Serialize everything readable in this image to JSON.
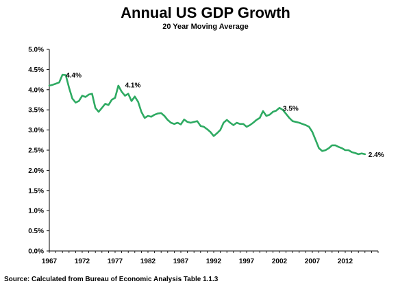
{
  "chart_data": {
    "type": "line",
    "title": "Annual US GDP Growth",
    "subtitle": "20 Year Moving Average",
    "xlabel": "",
    "ylabel": "",
    "ylim": [
      0,
      0.05
    ],
    "xlim": [
      1967,
      2017
    ],
    "y_ticks": [
      "0.0%",
      "0.5%",
      "1.0%",
      "1.5%",
      "2.0%",
      "2.5%",
      "3.0%",
      "3.5%",
      "4.0%",
      "4.5%",
      "5.0%"
    ],
    "x_ticks": [
      "1967",
      "1972",
      "1977",
      "1982",
      "1987",
      "1992",
      "1997",
      "2002",
      "2007",
      "2012"
    ],
    "grid": false,
    "line_color": "#2eaa62",
    "series": [
      {
        "x": [
          1967,
          1967.5,
          1968,
          1968.5,
          1969,
          1969.5,
          1970,
          1970.5,
          1971,
          1971.5,
          1972,
          1972.5,
          1973,
          1973.5,
          1974,
          1974.5,
          1975,
          1975.5,
          1976,
          1976.5,
          1977,
          1977.5,
          1978,
          1978.5,
          1979,
          1979.5,
          1980,
          1980.5,
          1981,
          1981.5,
          1982,
          1982.5,
          1983,
          1983.5,
          1984,
          1984.5,
          1985,
          1985.5,
          1986,
          1986.5,
          1987,
          1987.5,
          1988,
          1988.5,
          1989,
          1989.5,
          1990,
          1990.5,
          1991,
          1991.5,
          1992,
          1992.5,
          1993,
          1993.5,
          1994,
          1994.5,
          1995,
          1995.5,
          1996,
          1996.5,
          1997,
          1997.5,
          1998,
          1998.5,
          1999,
          1999.5,
          2000,
          2000.5,
          2001,
          2001.5,
          2002,
          2002.5,
          2003,
          2003.5,
          2004,
          2004.5,
          2005,
          2005.5,
          2006,
          2006.5,
          2007,
          2007.5,
          2008,
          2008.5,
          2009,
          2009.5,
          2010,
          2010.5,
          2011,
          2011.5,
          2012,
          2012.5,
          2013,
          2013.5,
          2014,
          2014.5,
          2015
        ],
        "values": [
          0.041,
          0.0412,
          0.0415,
          0.0418,
          0.0437,
          0.0436,
          0.0405,
          0.0378,
          0.0368,
          0.0372,
          0.0385,
          0.0382,
          0.0388,
          0.039,
          0.0355,
          0.0345,
          0.0355,
          0.0365,
          0.0362,
          0.0375,
          0.038,
          0.041,
          0.0395,
          0.0385,
          0.039,
          0.0372,
          0.0383,
          0.037,
          0.0345,
          0.033,
          0.0335,
          0.0333,
          0.0338,
          0.0341,
          0.0342,
          0.0335,
          0.0325,
          0.0318,
          0.0315,
          0.0318,
          0.0314,
          0.0326,
          0.032,
          0.0318,
          0.032,
          0.0322,
          0.031,
          0.0308,
          0.0302,
          0.0295,
          0.0285,
          0.0292,
          0.03,
          0.0318,
          0.0325,
          0.0318,
          0.0312,
          0.0318,
          0.0315,
          0.0315,
          0.0308,
          0.0312,
          0.0318,
          0.0325,
          0.033,
          0.0347,
          0.0335,
          0.0338,
          0.0345,
          0.0348,
          0.0355,
          0.035,
          0.034,
          0.033,
          0.0322,
          0.032,
          0.0318,
          0.0315,
          0.0312,
          0.0308,
          0.0295,
          0.0275,
          0.0255,
          0.0248,
          0.025,
          0.0255,
          0.0262,
          0.0262,
          0.0258,
          0.0255,
          0.025,
          0.025,
          0.0245,
          0.0243,
          0.024,
          0.0242,
          0.024
        ]
      }
    ],
    "annotations": [
      {
        "x": 1969,
        "y": 0.0437,
        "label": "4.4%"
      },
      {
        "x": 1978,
        "y": 0.0412,
        "label": "4.1%"
      },
      {
        "x": 2002,
        "y": 0.0355,
        "label": "3.5%"
      },
      {
        "x": 2015,
        "y": 0.024,
        "label": "2.4%"
      }
    ]
  },
  "source": "Source: Calculated  from Bureau of Economic Analysis Table  1.1.3"
}
